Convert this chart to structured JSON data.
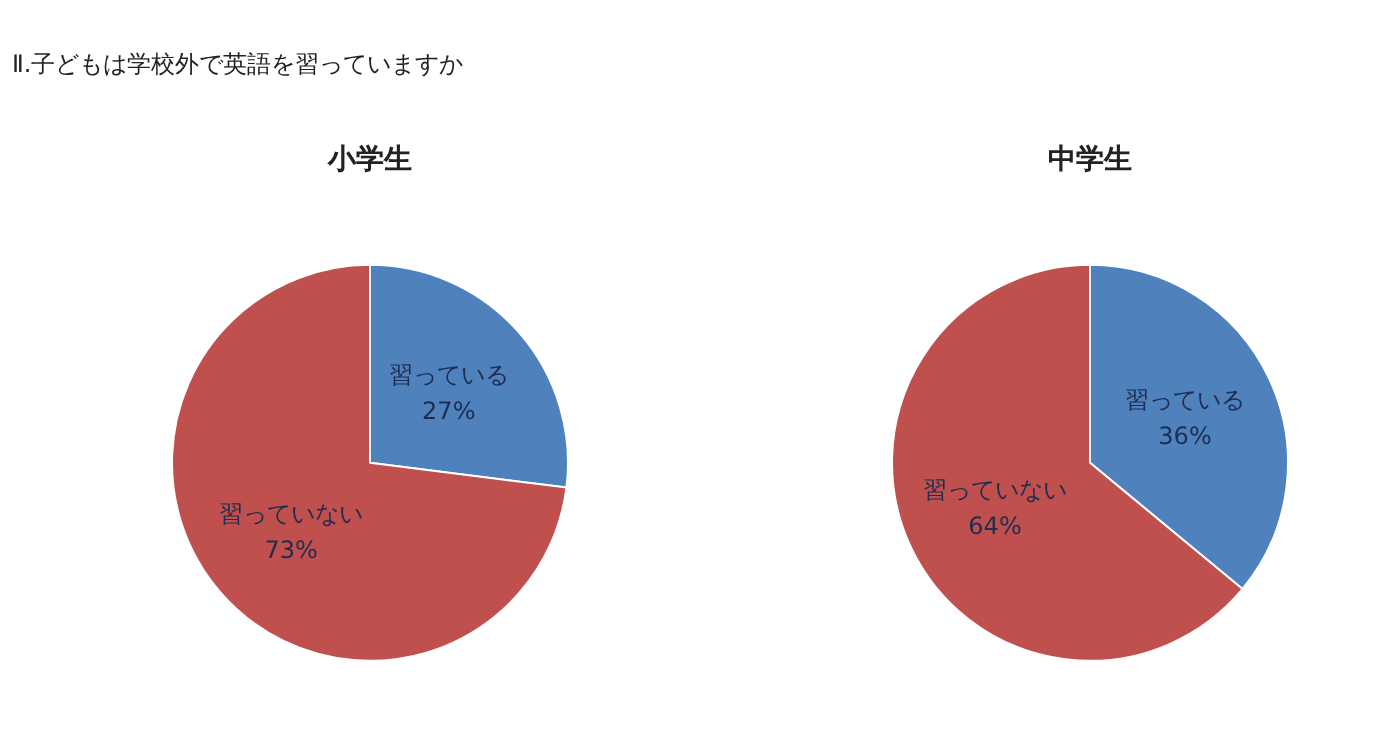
{
  "chart_data": [
    {
      "type": "pie",
      "title": "小学生",
      "annotations": [
        "Ⅱ.子どもは学校外で英語を習っていますか"
      ],
      "categories": [
        "習っている",
        "習っていない"
      ],
      "values": [
        27,
        73
      ],
      "value_labels": [
        "27%",
        "73%"
      ],
      "colors": [
        "#4f81bd",
        "#c0504d"
      ]
    },
    {
      "type": "pie",
      "title": "中学生",
      "categories": [
        "習っている",
        "習っていない"
      ],
      "values": [
        36,
        64
      ],
      "value_labels": [
        "36%",
        "64%"
      ],
      "colors": [
        "#4f81bd",
        "#c0504d"
      ]
    }
  ]
}
